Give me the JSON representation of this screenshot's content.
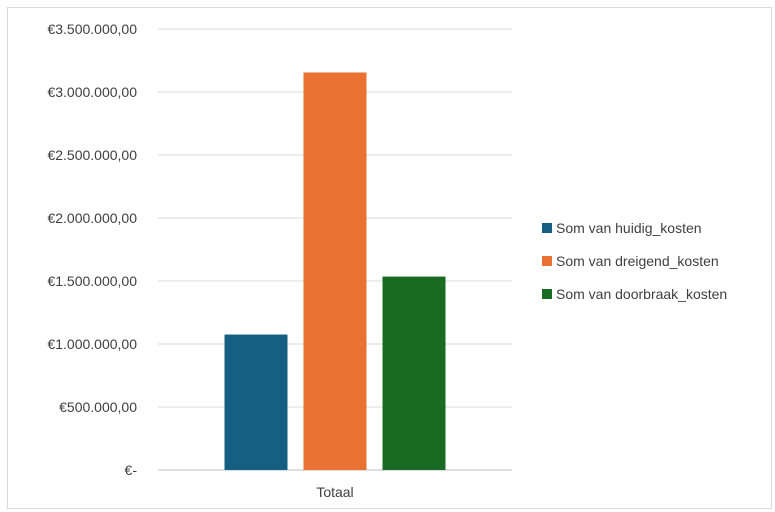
{
  "chart_data": {
    "type": "bar",
    "categories": [
      "Totaal"
    ],
    "series": [
      {
        "name": "Som van huidig_kosten",
        "color": "#156082",
        "values": [
          1075000
        ]
      },
      {
        "name": "Som van dreigend_kosten",
        "color": "#E97132",
        "values": [
          3155000
        ]
      },
      {
        "name": "Som van doorbraak_kosten",
        "color": "#196B24",
        "values": [
          1535000
        ]
      }
    ],
    "ylim": [
      0,
      3500000
    ],
    "ytick_values": [
      0,
      500000,
      1000000,
      1500000,
      2000000,
      2500000,
      3000000,
      3500000
    ],
    "ytick_labels": [
      "€-",
      "€500.000,00",
      "€1.000.000,00",
      "€1.500.000,00",
      "€2.000.000,00",
      "€2.500.000,00",
      "€3.000.000,00",
      "€3.500.000,00"
    ],
    "grid": true,
    "legend": "right",
    "title": "",
    "xlabel": "",
    "ylabel": ""
  }
}
